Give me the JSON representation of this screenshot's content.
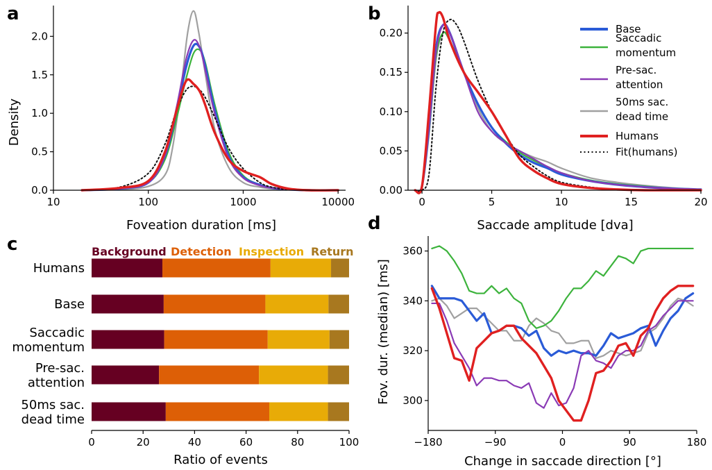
{
  "panels": {
    "a": "a",
    "b": "b",
    "c": "c",
    "d": "d"
  },
  "series_colors": {
    "Base": "#2a5bd7",
    "Saccadic momentum": "#3cb33c",
    "Pre-sac. attention": "#8a3ab5",
    "50ms sac. dead time": "#a0a0a0",
    "Humans": "#e02020",
    "Fit(humans)": "#111111"
  },
  "chart_data": [
    {
      "id": "a",
      "type": "line",
      "xlabel": "Foveation duration [ms]",
      "ylabel": "Density",
      "xscale": "log",
      "xlim": [
        10,
        12000
      ],
      "ylim": [
        0,
        2.4
      ],
      "xticks": [
        10,
        100,
        1000,
        10000
      ],
      "xticklabels": [
        "10",
        "100",
        "1000",
        "10000"
      ],
      "yticks": [
        0.0,
        0.5,
        1.0,
        1.5,
        2.0
      ],
      "yticklabels": [
        "0.0",
        "0.5",
        "1.0",
        "1.5",
        "2.0"
      ],
      "series": [
        {
          "name": "Base",
          "x": [
            20,
            50,
            100,
            150,
            200,
            250,
            300,
            350,
            400,
            500,
            700,
            1000,
            1500,
            2000,
            3000,
            5000,
            10000
          ],
          "y": [
            0,
            0.02,
            0.1,
            0.45,
            1.05,
            1.6,
            1.88,
            1.85,
            1.6,
            1.05,
            0.45,
            0.17,
            0.07,
            0.03,
            0.01,
            0,
            0
          ]
        },
        {
          "name": "Saccadic momentum",
          "x": [
            20,
            50,
            100,
            150,
            200,
            250,
            300,
            350,
            400,
            500,
            700,
            1000,
            1500,
            2000,
            3000,
            5000,
            10000
          ],
          "y": [
            0,
            0.02,
            0.1,
            0.4,
            0.95,
            1.45,
            1.78,
            1.82,
            1.65,
            1.12,
            0.5,
            0.19,
            0.07,
            0.03,
            0.01,
            0,
            0
          ]
        },
        {
          "name": "Pre-sac. attention",
          "x": [
            20,
            50,
            100,
            150,
            200,
            250,
            300,
            350,
            400,
            500,
            700,
            1000,
            1500,
            2000,
            3000,
            5000,
            10000
          ],
          "y": [
            0,
            0.02,
            0.1,
            0.45,
            1.1,
            1.7,
            1.95,
            1.85,
            1.55,
            1.0,
            0.42,
            0.16,
            0.06,
            0.03,
            0.01,
            0,
            0
          ]
        },
        {
          "name": "50ms sac. dead time",
          "x": [
            20,
            50,
            100,
            150,
            180,
            220,
            260,
            300,
            340,
            400,
            500,
            700,
            1000,
            1500,
            2000,
            3000,
            5000,
            10000
          ],
          "y": [
            0,
            0.01,
            0.05,
            0.2,
            0.55,
            1.3,
            2.05,
            2.33,
            2.05,
            1.5,
            0.8,
            0.3,
            0.1,
            0.04,
            0.02,
            0.01,
            0,
            0
          ]
        },
        {
          "name": "Humans",
          "x": [
            20,
            50,
            100,
            150,
            200,
            250,
            300,
            350,
            400,
            500,
            700,
            1000,
            1500,
            2000,
            3000,
            5000,
            10000
          ],
          "y": [
            0,
            0.03,
            0.12,
            0.5,
            1.05,
            1.42,
            1.38,
            1.28,
            1.1,
            0.75,
            0.4,
            0.25,
            0.17,
            0.08,
            0.02,
            0,
            0
          ]
        },
        {
          "name": "Fit(humans)",
          "x": [
            20,
            50,
            100,
            150,
            200,
            250,
            300,
            350,
            400,
            500,
            700,
            1000,
            1500,
            2000,
            3000,
            5000,
            10000
          ],
          "y": [
            0,
            0.04,
            0.22,
            0.6,
            1.05,
            1.3,
            1.35,
            1.3,
            1.2,
            0.95,
            0.55,
            0.28,
            0.1,
            0.04,
            0.01,
            0,
            0
          ]
        }
      ]
    },
    {
      "id": "b",
      "type": "line",
      "xlabel": "Saccade amplitude [dva]",
      "xlim": [
        -1,
        20
      ],
      "ylim": [
        0,
        0.235
      ],
      "xticks": [
        0,
        5,
        10,
        15,
        20
      ],
      "xticklabels": [
        "0",
        "5",
        "10",
        "15",
        "20"
      ],
      "yticks": [
        0.0,
        0.05,
        0.1,
        0.15,
        0.2
      ],
      "yticklabels": [
        "0.00",
        "0.05",
        "0.10",
        "0.15",
        "0.20"
      ],
      "legend": [
        "Base",
        "Saccadic momentum",
        "Pre-sac. attention",
        "50ms sac. dead time",
        "Humans",
        "Fit(humans)"
      ],
      "legend_labels": [
        [
          "Base"
        ],
        [
          "Saccadic",
          "momentum"
        ],
        [
          "Pre-sac.",
          "attention"
        ],
        [
          "50ms sac.",
          "dead time"
        ],
        [
          "Humans"
        ],
        [
          "Fit(humans)"
        ]
      ],
      "legend_position": "top-right",
      "series": [
        {
          "name": "Base",
          "x": [
            -0.5,
            0,
            0.5,
            1,
            1.5,
            2,
            3,
            4,
            5,
            6,
            7,
            8,
            9,
            10,
            12,
            14,
            16,
            18,
            20
          ],
          "y": [
            0,
            0.005,
            0.08,
            0.18,
            0.21,
            0.2,
            0.15,
            0.11,
            0.08,
            0.06,
            0.045,
            0.035,
            0.028,
            0.02,
            0.012,
            0.007,
            0.004,
            0.002,
            0.001
          ]
        },
        {
          "name": "Saccadic momentum",
          "x": [
            -0.5,
            0,
            0.5,
            1,
            1.5,
            2,
            3,
            4,
            5,
            6,
            7,
            8,
            9,
            10,
            12,
            14,
            16,
            18,
            20
          ],
          "y": [
            0,
            0.005,
            0.075,
            0.17,
            0.2,
            0.19,
            0.15,
            0.11,
            0.08,
            0.062,
            0.048,
            0.038,
            0.03,
            0.022,
            0.013,
            0.008,
            0.005,
            0.002,
            0.001
          ]
        },
        {
          "name": "Pre-sac. attention",
          "x": [
            -0.5,
            0,
            0.5,
            1,
            1.5,
            2,
            3,
            4,
            5,
            6,
            7,
            8,
            9,
            10,
            12,
            14,
            16,
            18,
            20
          ],
          "y": [
            0,
            0.005,
            0.08,
            0.175,
            0.21,
            0.2,
            0.15,
            0.1,
            0.075,
            0.06,
            0.05,
            0.04,
            0.03,
            0.022,
            0.012,
            0.007,
            0.004,
            0.002,
            0.001
          ]
        },
        {
          "name": "50ms sac. dead time",
          "x": [
            -0.5,
            0,
            0.5,
            1,
            1.5,
            2,
            3,
            4,
            5,
            6,
            7,
            8,
            9,
            10,
            12,
            14,
            16,
            18,
            20
          ],
          "y": [
            0,
            0.005,
            0.07,
            0.165,
            0.2,
            0.19,
            0.15,
            0.105,
            0.075,
            0.06,
            0.05,
            0.042,
            0.036,
            0.028,
            0.016,
            0.01,
            0.006,
            0.003,
            0.001
          ]
        },
        {
          "name": "Humans",
          "x": [
            -0.5,
            0,
            0.5,
            1,
            1.2,
            1.5,
            2,
            3,
            4,
            5,
            6,
            7,
            8,
            9,
            10,
            12,
            14,
            16,
            18,
            20
          ],
          "y": [
            0,
            0.005,
            0.1,
            0.21,
            0.226,
            0.22,
            0.19,
            0.15,
            0.125,
            0.1,
            0.07,
            0.04,
            0.025,
            0.015,
            0.008,
            0.003,
            0.001,
            0,
            0,
            0
          ]
        },
        {
          "name": "Fit(humans)",
          "x": [
            -0.5,
            0,
            0.5,
            1,
            1.5,
            2,
            2.5,
            3,
            4,
            5,
            6,
            7,
            8,
            9,
            10,
            12,
            14,
            16,
            18,
            20
          ],
          "y": [
            0,
            0,
            0.02,
            0.13,
            0.2,
            0.217,
            0.21,
            0.19,
            0.14,
            0.1,
            0.07,
            0.045,
            0.03,
            0.018,
            0.01,
            0.004,
            0.001,
            0,
            0,
            0
          ]
        }
      ]
    },
    {
      "id": "c",
      "type": "bar",
      "orientation": "horizontal",
      "stacked": true,
      "xlabel": "Ratio of events",
      "xlim": [
        0,
        100
      ],
      "xticks": [
        0,
        20,
        40,
        60,
        80,
        100
      ],
      "xticklabels": [
        "0",
        "20",
        "40",
        "60",
        "80",
        "100"
      ],
      "categories": [
        "Humans",
        "Base",
        "Saccadic momentum",
        "Pre-sac. attention",
        "50ms sac. dead time"
      ],
      "category_labels": [
        [
          "Humans"
        ],
        [
          "Base"
        ],
        [
          "Saccadic",
          "momentum"
        ],
        [
          "Pre-sac.",
          "attention"
        ],
        [
          "50ms sac.",
          "dead time"
        ]
      ],
      "series": [
        {
          "name": "Background",
          "color": "#660022",
          "values": [
            27.5,
            28.0,
            28.2,
            26.2,
            28.8
          ]
        },
        {
          "name": "Detection",
          "color": "#dd5f06",
          "values": [
            42.0,
            39.5,
            40.2,
            38.8,
            40.2
          ]
        },
        {
          "name": "Inspection",
          "color": "#e8ab07",
          "values": [
            23.5,
            24.5,
            24.0,
            26.8,
            22.8
          ]
        },
        {
          "name": "Return",
          "color": "#a8781f",
          "values": [
            7.0,
            8.0,
            7.6,
            8.2,
            8.2
          ]
        }
      ]
    },
    {
      "id": "d",
      "type": "line",
      "xlabel": "Change in saccade direction [°]",
      "ylabel": "Fov. dur. (median) [ms]",
      "xlim": [
        -180,
        180
      ],
      "ylim": [
        288,
        366
      ],
      "xticks": [
        -180,
        -90,
        0,
        90,
        180
      ],
      "xticklabels": [
        "−180",
        "−90",
        "0",
        "90",
        "180"
      ],
      "yticks": [
        300,
        320,
        340,
        360
      ],
      "yticklabels": [
        "300",
        "320",
        "340",
        "360"
      ],
      "series": [
        {
          "name": "Base",
          "x": [
            -175,
            -165,
            -155,
            -145,
            -135,
            -125,
            -115,
            -105,
            -95,
            -85,
            -75,
            -65,
            -55,
            -45,
            -35,
            -25,
            -15,
            -5,
            5,
            15,
            25,
            35,
            45,
            55,
            65,
            75,
            85,
            95,
            105,
            115,
            125,
            135,
            145,
            155,
            165,
            175
          ],
          "y": [
            346,
            341,
            341,
            341,
            340,
            336,
            332,
            335,
            327,
            328,
            330,
            330,
            329,
            326,
            328,
            321,
            318,
            320,
            319,
            320,
            319,
            319,
            318,
            322,
            327,
            325,
            326,
            327,
            329,
            330,
            322,
            328,
            333,
            336,
            341,
            343
          ]
        },
        {
          "name": "Saccadic momentum",
          "x": [
            -175,
            -165,
            -155,
            -145,
            -135,
            -125,
            -115,
            -105,
            -95,
            -85,
            -75,
            -65,
            -55,
            -45,
            -35,
            -25,
            -15,
            -5,
            5,
            15,
            25,
            35,
            45,
            55,
            65,
            75,
            85,
            95,
            105,
            115,
            125,
            135,
            145,
            155,
            165,
            175
          ],
          "y": [
            361,
            362,
            360,
            356,
            351,
            344,
            343,
            343,
            346,
            343,
            345,
            341,
            339,
            332,
            329,
            330,
            332,
            336,
            341,
            345,
            345,
            348,
            352,
            350,
            354,
            358,
            357,
            355,
            360,
            361,
            361,
            361,
            361,
            361,
            361,
            361
          ]
        },
        {
          "name": "Pre-sac. attention",
          "x": [
            -175,
            -165,
            -155,
            -145,
            -135,
            -125,
            -115,
            -105,
            -95,
            -85,
            -75,
            -65,
            -55,
            -45,
            -35,
            -25,
            -15,
            -5,
            5,
            15,
            25,
            35,
            45,
            55,
            65,
            75,
            85,
            95,
            105,
            115,
            125,
            135,
            145,
            155,
            165,
            175
          ],
          "y": [
            339,
            339,
            332,
            323,
            318,
            313,
            306,
            309,
            309,
            308,
            308,
            306,
            305,
            307,
            299,
            297,
            303,
            298,
            299,
            305,
            318,
            320,
            316,
            315,
            313,
            318,
            320,
            320,
            322,
            328,
            330,
            334,
            337,
            340,
            340,
            340
          ]
        },
        {
          "name": "50ms sac. dead time",
          "x": [
            -175,
            -165,
            -155,
            -145,
            -135,
            -125,
            -115,
            -105,
            -95,
            -85,
            -75,
            -65,
            -55,
            -45,
            -35,
            -25,
            -15,
            -5,
            5,
            15,
            25,
            35,
            45,
            55,
            65,
            75,
            85,
            95,
            105,
            115,
            125,
            135,
            145,
            155,
            165,
            175
          ],
          "y": [
            340,
            341,
            338,
            333,
            335,
            337,
            337,
            334,
            331,
            328,
            328,
            324,
            324,
            330,
            333,
            331,
            328,
            327,
            323,
            323,
            324,
            324,
            317,
            318,
            320,
            319,
            318,
            319,
            320,
            327,
            329,
            333,
            338,
            341,
            340,
            338
          ]
        },
        {
          "name": "Humans",
          "x": [
            -175,
            -165,
            -155,
            -145,
            -135,
            -125,
            -115,
            -105,
            -95,
            -85,
            -75,
            -65,
            -55,
            -45,
            -35,
            -25,
            -15,
            -5,
            5,
            15,
            25,
            35,
            45,
            55,
            65,
            75,
            85,
            95,
            105,
            115,
            125,
            135,
            145,
            155,
            165,
            175
          ],
          "y": [
            345,
            337,
            327,
            317,
            316,
            308,
            321,
            324,
            327,
            328,
            330,
            330,
            325,
            322,
            319,
            314,
            309,
            300,
            296,
            292,
            292,
            300,
            311,
            312,
            316,
            322,
            323,
            318,
            326,
            329,
            336,
            341,
            344,
            346,
            346,
            346
          ]
        }
      ]
    }
  ]
}
